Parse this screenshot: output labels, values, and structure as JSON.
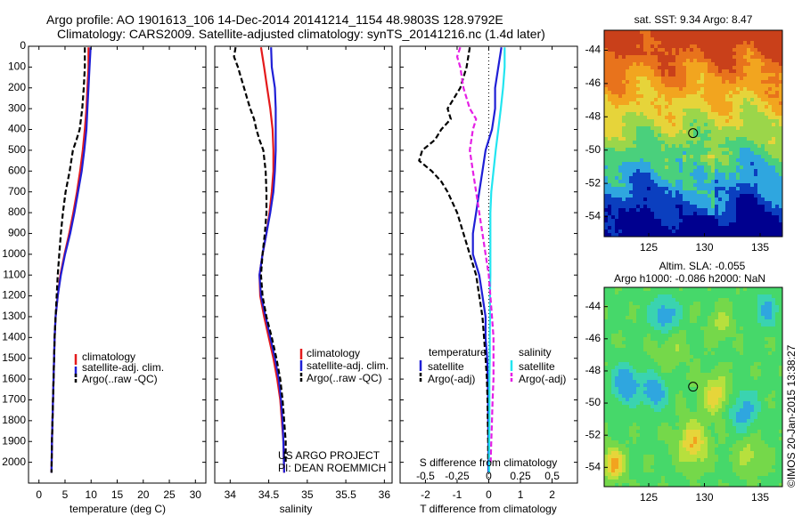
{
  "title": {
    "line1": "Argo profile: AO 1901613_106 14-Dec-2014 20141214_1154 48.9803S 128.9792E",
    "line2": "Climatology: CARS2009. Satellite-adjusted climatology: synTS_20141216.nc (1.4d later)"
  },
  "annotations": {
    "project": "US ARGO PROJECT",
    "pi": "PI: DEAN ROEMMICH",
    "sst": "sat. SST: 9.34  Argo: 8.47",
    "altim1": "Altim. SLA: -0.055",
    "altim2": "Argo h1000: -0.086 h2000: NaN",
    "credit": "©IMOS 20-Jan-2015 13:38:27"
  },
  "colors": {
    "climatology": "#e41a1c",
    "satellite": "#1f1fd6",
    "argo": "#000000",
    "sal_satellite": "#22e5f0",
    "sal_argo": "#e51fe5"
  },
  "chart_data": [
    {
      "type": "line",
      "xlabel": "temperature (deg C)",
      "ylabel": "",
      "xlim": [
        -2,
        32
      ],
      "ylim": [
        2100,
        0
      ],
      "xticks": [
        0,
        5,
        10,
        15,
        20,
        25,
        30
      ],
      "yticks": [
        0,
        100,
        200,
        300,
        400,
        500,
        600,
        700,
        800,
        900,
        1000,
        1100,
        1200,
        1300,
        1400,
        1500,
        1600,
        1700,
        1800,
        1900,
        2000
      ],
      "legend": [
        "climatology",
        "satellite-adj. clim.",
        "Argo(..raw -QC)"
      ],
      "series": [
        {
          "name": "climatology",
          "depth": [
            5,
            100,
            200,
            300,
            400,
            500,
            600,
            700,
            800,
            900,
            1000,
            1100,
            1200,
            1300,
            1400,
            1500,
            1600,
            1700,
            1800,
            1900,
            2050
          ],
          "values": [
            9.5,
            9.5,
            9.3,
            9.1,
            8.8,
            8.4,
            7.9,
            7.3,
            6.6,
            5.8,
            4.9,
            4.1,
            3.6,
            3.2,
            3.0,
            2.9,
            2.8,
            2.7,
            2.6,
            2.5,
            2.4
          ]
        },
        {
          "name": "satellite-adj. clim.",
          "depth": [
            5,
            100,
            200,
            300,
            400,
            500,
            600,
            700,
            800,
            900,
            1000,
            1100,
            1200,
            1300,
            1400,
            1500,
            1600,
            1700,
            1800,
            1900,
            2050
          ],
          "values": [
            9.9,
            9.7,
            9.5,
            9.3,
            9.1,
            8.7,
            8.2,
            7.5,
            6.8,
            6.0,
            5.0,
            4.2,
            3.6,
            3.2,
            3.0,
            2.9,
            2.8,
            2.7,
            2.6,
            2.5,
            2.4
          ]
        },
        {
          "name": "Argo(..raw -QC)",
          "depth": [
            5,
            100,
            200,
            300,
            400,
            450,
            500,
            600,
            700,
            800,
            900,
            1000,
            1100,
            1200,
            1300,
            1400,
            1500,
            1600,
            1700,
            1800,
            1900,
            2050
          ],
          "values": [
            8.8,
            8.8,
            8.6,
            8.3,
            7.8,
            7.2,
            6.5,
            5.9,
            5.1,
            4.6,
            4.2,
            3.9,
            3.6,
            3.4,
            3.2,
            3.0,
            2.9,
            2.8,
            2.7,
            2.6,
            2.5,
            2.4
          ]
        }
      ]
    },
    {
      "type": "line",
      "xlabel": "salinity",
      "ylabel": "",
      "xlim": [
        33.8,
        36.1
      ],
      "ylim": [
        2100,
        0
      ],
      "xticks": [
        34,
        34.5,
        35,
        35.5,
        36
      ],
      "legend": [
        "climatology",
        "satellite-adj. clim.",
        "Argo(..raw -QC)"
      ],
      "series": [
        {
          "name": "climatology",
          "depth": [
            5,
            100,
            200,
            300,
            400,
            500,
            600,
            700,
            800,
            900,
            1000,
            1100,
            1200,
            1300,
            1400,
            1500,
            1600,
            1700,
            1800,
            1900,
            2050
          ],
          "values": [
            34.4,
            34.44,
            34.48,
            34.52,
            34.55,
            34.56,
            34.56,
            34.54,
            34.51,
            34.47,
            34.42,
            34.38,
            34.39,
            34.44,
            34.5,
            34.56,
            34.61,
            34.65,
            34.67,
            34.69,
            34.7
          ]
        },
        {
          "name": "satellite-adj. clim.",
          "depth": [
            5,
            100,
            200,
            300,
            400,
            500,
            600,
            700,
            800,
            900,
            1000,
            1100,
            1200,
            1300,
            1400,
            1500,
            1600,
            1700,
            1800,
            1900,
            2050
          ],
          "values": [
            34.53,
            34.54,
            34.58,
            34.59,
            34.59,
            34.59,
            34.58,
            34.56,
            34.52,
            34.47,
            34.42,
            34.38,
            34.4,
            34.46,
            34.52,
            34.58,
            34.63,
            34.66,
            34.68,
            34.69,
            34.7
          ]
        },
        {
          "name": "Argo(..raw -QC)",
          "depth": [
            5,
            50,
            100,
            150,
            200,
            250,
            300,
            350,
            400,
            450,
            500,
            600,
            700,
            800,
            900,
            1000,
            1100,
            1200,
            1300,
            1400,
            1500,
            1600,
            1700,
            1800,
            1900,
            2000
          ],
          "values": [
            34.07,
            34.05,
            34.1,
            34.14,
            34.18,
            34.22,
            34.26,
            34.31,
            34.34,
            34.38,
            34.43,
            34.46,
            34.47,
            34.47,
            34.45,
            34.42,
            34.4,
            34.42,
            34.47,
            34.54,
            34.6,
            34.65,
            34.68,
            34.7,
            34.72,
            34.72
          ]
        }
      ]
    },
    {
      "type": "line",
      "xlabel": "T difference from climatology",
      "xlabel2": "S difference from climatology",
      "ylabel": "",
      "xlim": [
        -2.8,
        2.8
      ],
      "ylim": [
        2100,
        0
      ],
      "xticks": [
        -2,
        -1,
        0,
        1,
        2
      ],
      "xticks_s": [
        "-0.5",
        "-0.25",
        "0",
        "0.25",
        "0.5"
      ],
      "legend_titles": [
        "temperature",
        "salinity"
      ],
      "legend": [
        "satellite",
        "Argo(-adj)",
        "satellite",
        "Argo(-adj)"
      ],
      "series": [
        {
          "name": "satellite",
          "depth": [
            5,
            100,
            200,
            300,
            400,
            500,
            600,
            700,
            800,
            900,
            1000,
            1100,
            1200,
            1300,
            1400,
            1500,
            1600,
            1700,
            1800,
            1900,
            2050
          ],
          "values": [
            0.4,
            0.3,
            0.2,
            0.2,
            0.1,
            -0.1,
            -0.2,
            -0.3,
            -0.4,
            -0.5,
            -0.5,
            -0.3,
            -0.2,
            -0.1,
            -0.1,
            -0.05,
            -0.03,
            -0.02,
            -0.02,
            -0.01,
            -0.01
          ]
        },
        {
          "name": "Argo(-adj)",
          "depth": [
            5,
            100,
            200,
            250,
            300,
            350,
            400,
            450,
            500,
            550,
            600,
            650,
            700,
            800,
            900,
            1000,
            1100,
            1200,
            1300,
            1400,
            1500,
            1600,
            1700,
            1800,
            1900,
            2000
          ],
          "values": [
            -0.6,
            -0.7,
            -0.9,
            -1.1,
            -1.3,
            -1.2,
            -1.5,
            -1.7,
            -2.1,
            -2.2,
            -1.8,
            -1.5,
            -1.3,
            -1.0,
            -0.8,
            -0.6,
            -0.4,
            -0.3,
            -0.2,
            -0.15,
            -0.1,
            -0.06,
            -0.04,
            -0.03,
            -0.02,
            -0.02
          ]
        },
        {
          "name": "satellite",
          "depth": [
            5,
            100,
            200,
            300,
            400,
            500,
            600,
            700,
            800,
            900,
            1000,
            1100,
            1200,
            1300,
            1400,
            1500,
            1600,
            1700,
            1800,
            1900,
            2050
          ],
          "values": [
            0.5,
            0.5,
            0.45,
            0.38,
            0.3,
            0.22,
            0.15,
            0.08,
            0.05,
            0.05,
            0.05,
            0.05,
            0.04,
            0.04,
            0.03,
            0.03,
            0.02,
            0.02,
            0.02,
            0.01,
            0.01
          ]
        },
        {
          "name": "Argo(-adj)",
          "depth": [
            5,
            50,
            100,
            200,
            300,
            350,
            400,
            500,
            600,
            700,
            800,
            900,
            1000,
            1100,
            1200,
            1300,
            1400,
            1500,
            1600,
            1700,
            1800,
            1900,
            2000
          ],
          "values": [
            -0.9,
            -1.0,
            -0.9,
            -0.8,
            -0.6,
            -0.4,
            -0.5,
            -0.6,
            -0.5,
            -0.4,
            -0.3,
            -0.2,
            -0.1,
            0.0,
            0.05,
            0.1,
            0.15,
            0.15,
            0.15,
            0.12,
            0.1,
            0.08,
            0.06
          ]
        }
      ]
    },
    {
      "type": "heatmap",
      "title": "sat. SST: 9.34  Argo: 8.47",
      "xlim": [
        121,
        137
      ],
      "ylim": [
        -55.2,
        -42.8
      ],
      "xticks": [
        125,
        130,
        135
      ],
      "yticks": [
        -44,
        -46,
        -48,
        -50,
        -52,
        -54
      ],
      "marker": {
        "lon": 128.98,
        "lat": -48.98
      },
      "palette": [
        "#00008f",
        "#0b3fbf",
        "#2fa6df",
        "#4ad07c",
        "#9bd64a",
        "#e6d43a",
        "#f2a51f",
        "#e8731c",
        "#c9401a"
      ]
    },
    {
      "type": "heatmap",
      "title": "Altim. SLA: -0.055",
      "xlim": [
        121,
        137
      ],
      "ylim": [
        -55.2,
        -42.8
      ],
      "xticks": [
        125,
        130,
        135
      ],
      "yticks": [
        -44,
        -46,
        -48,
        -50,
        -52,
        -54
      ],
      "marker": {
        "lon": 128.98,
        "lat": -48.98
      },
      "palette": [
        "#2fa6df",
        "#3ad3b0",
        "#46d86a",
        "#75d84a",
        "#b7e03d",
        "#e6d53a",
        "#f2a31f",
        "#ea6a1c"
      ]
    }
  ]
}
